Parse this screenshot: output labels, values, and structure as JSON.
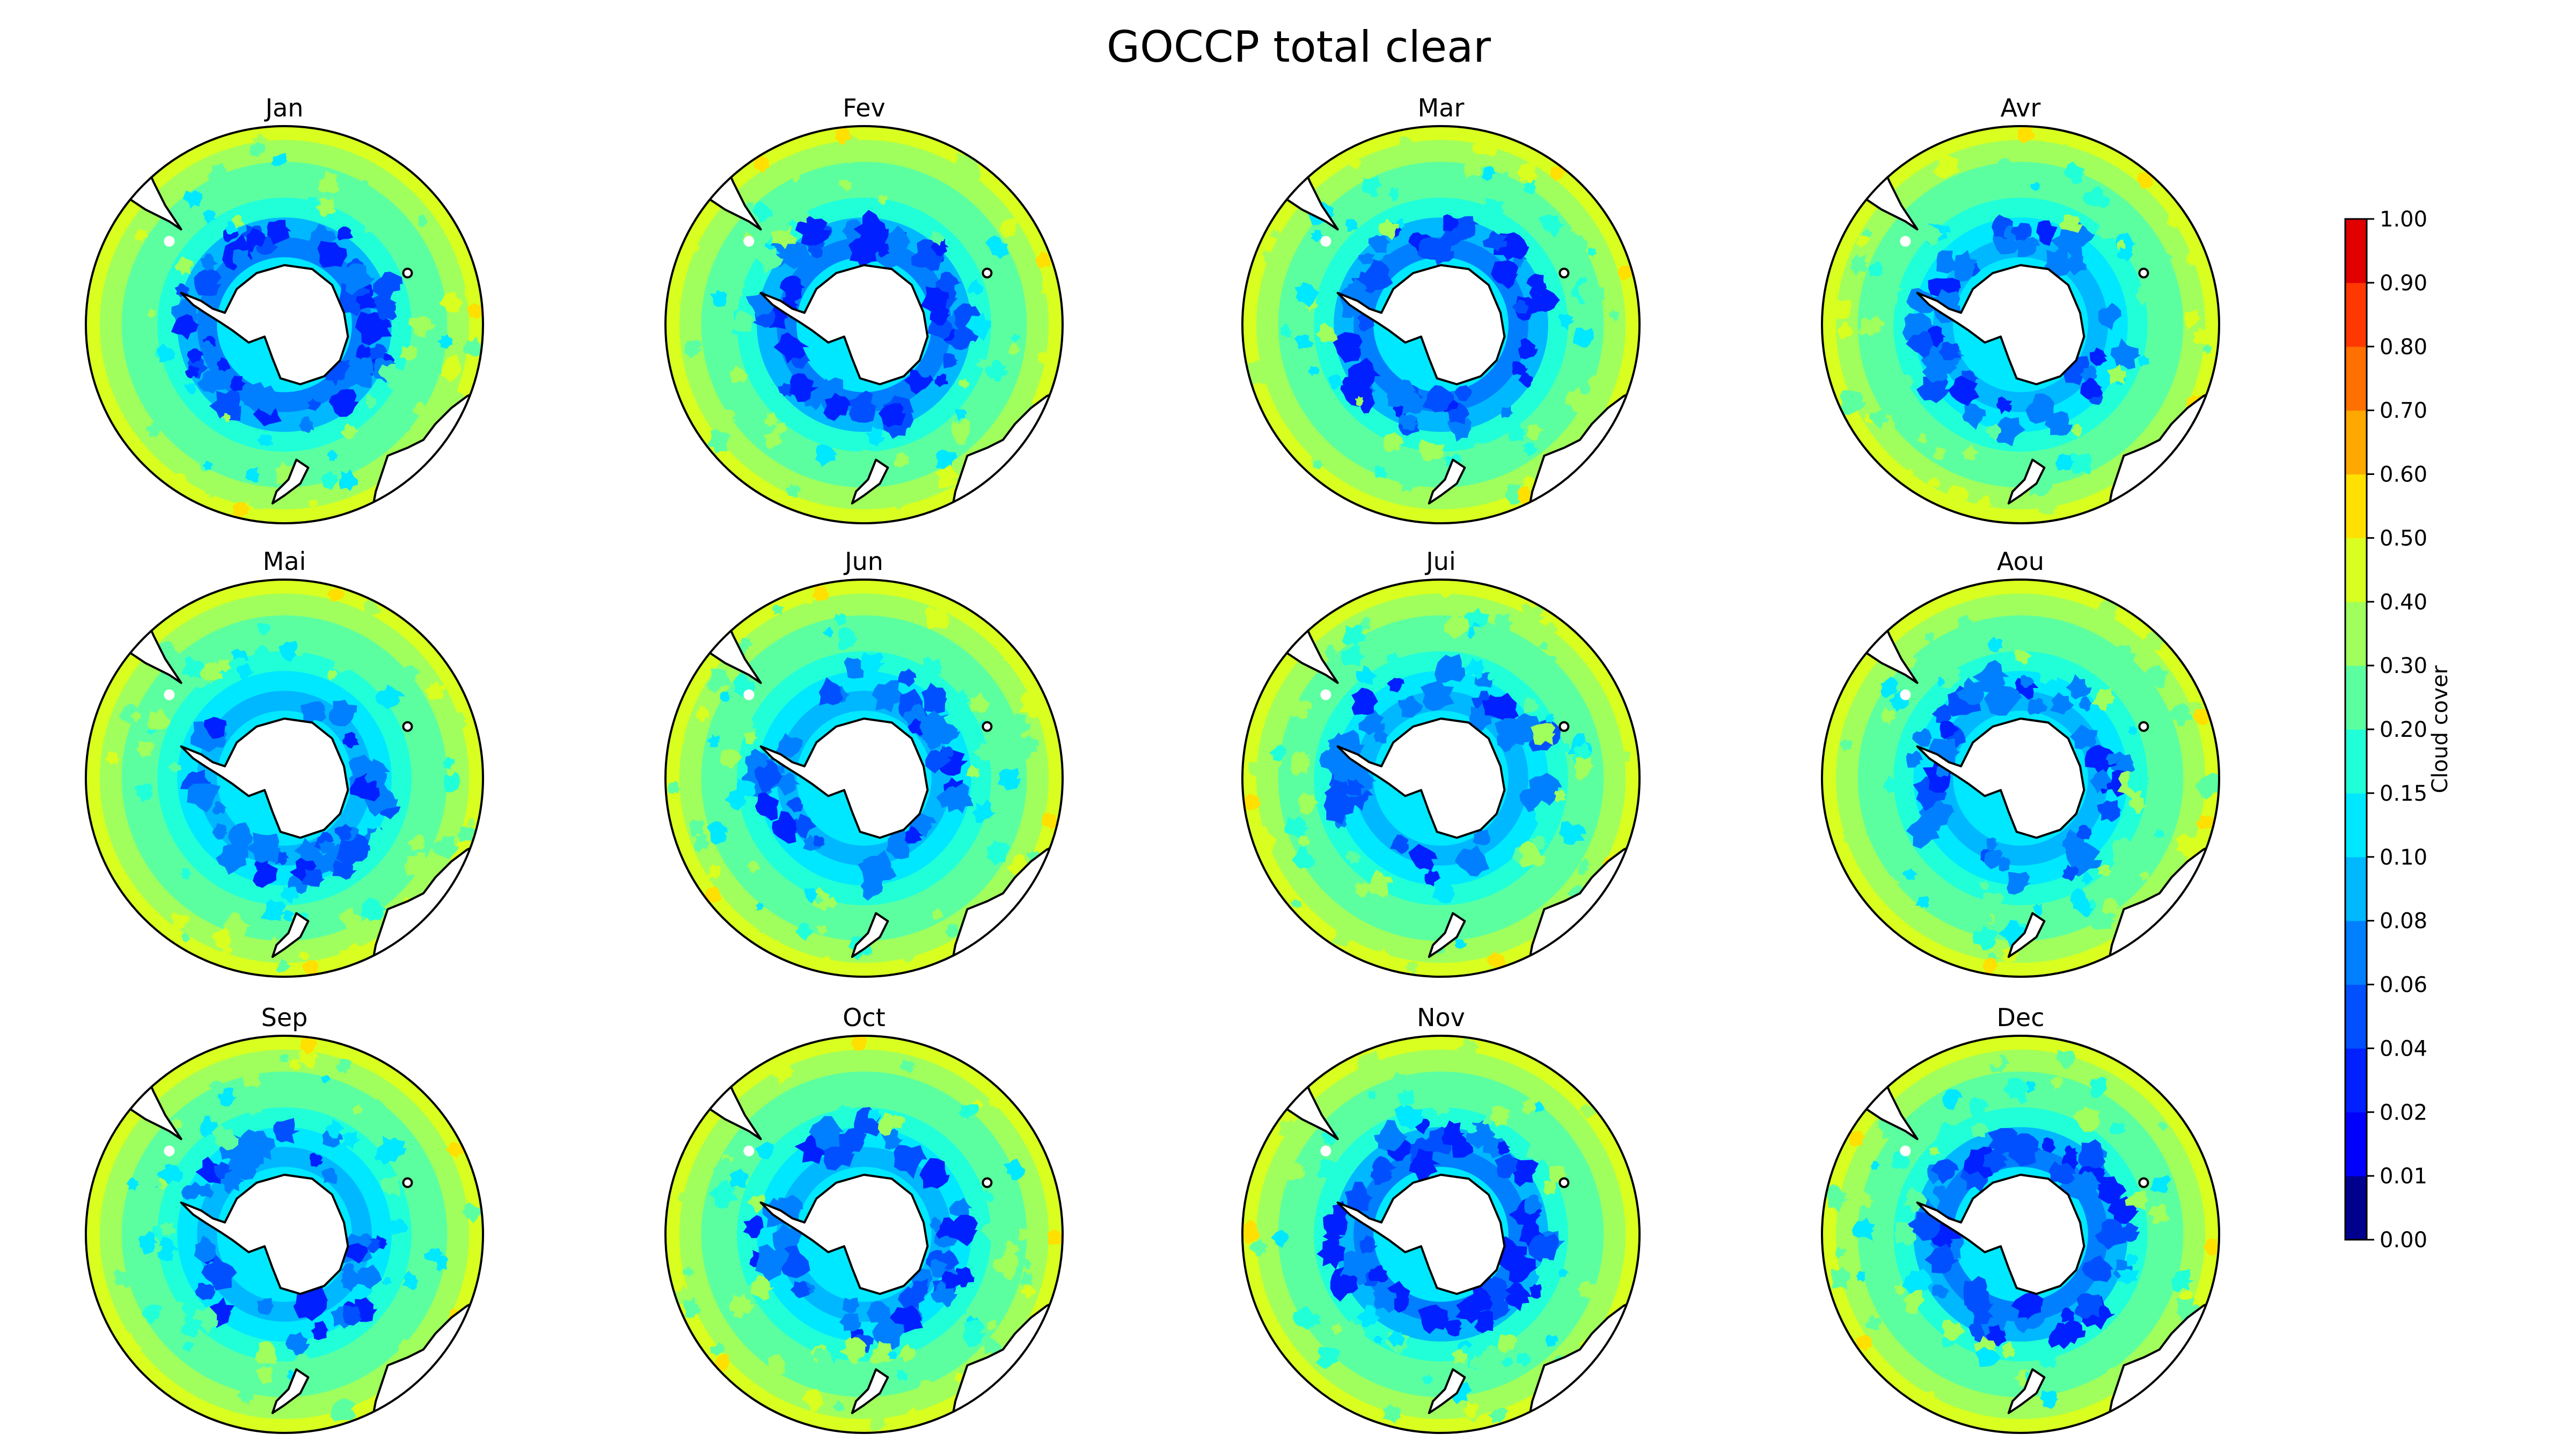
{
  "title": "GOCCP total clear",
  "panels": [
    {
      "label": "Jan",
      "month_index": 1
    },
    {
      "label": "Fev",
      "month_index": 2
    },
    {
      "label": "Mar",
      "month_index": 3
    },
    {
      "label": "Avr",
      "month_index": 4
    },
    {
      "label": "Mai",
      "month_index": 5
    },
    {
      "label": "Jun",
      "month_index": 6
    },
    {
      "label": "Jui",
      "month_index": 7
    },
    {
      "label": "Aou",
      "month_index": 8
    },
    {
      "label": "Sep",
      "month_index": 9
    },
    {
      "label": "Oct",
      "month_index": 10
    },
    {
      "label": "Nov",
      "month_index": 11
    },
    {
      "label": "Dec",
      "month_index": 12
    }
  ],
  "colorbar": {
    "label": "Cloud cover",
    "levels": [
      0.0,
      0.01,
      0.02,
      0.04,
      0.06,
      0.08,
      0.1,
      0.15,
      0.2,
      0.3,
      0.4,
      0.5,
      0.6,
      0.7,
      0.8,
      0.9,
      1.0
    ],
    "tick_labels": [
      "0.00",
      "0.01",
      "0.02",
      "0.04",
      "0.06",
      "0.08",
      "0.10",
      "0.15",
      "0.20",
      "0.30",
      "0.40",
      "0.50",
      "0.60",
      "0.70",
      "0.80",
      "0.90",
      "1.00"
    ],
    "colors": [
      "#00008f",
      "#0000ff",
      "#0020ff",
      "#0050ff",
      "#0080ff",
      "#00b8ff",
      "#00e8ff",
      "#20ffd8",
      "#5cffa0",
      "#a0ff5c",
      "#d8ff20",
      "#ffe000",
      "#ffa800",
      "#ff7000",
      "#ff3800",
      "#e00000",
      "#800000"
    ]
  },
  "colors": {
    "land": "#ffffff",
    "coastline": "#000000",
    "frame": "#000000"
  }
}
